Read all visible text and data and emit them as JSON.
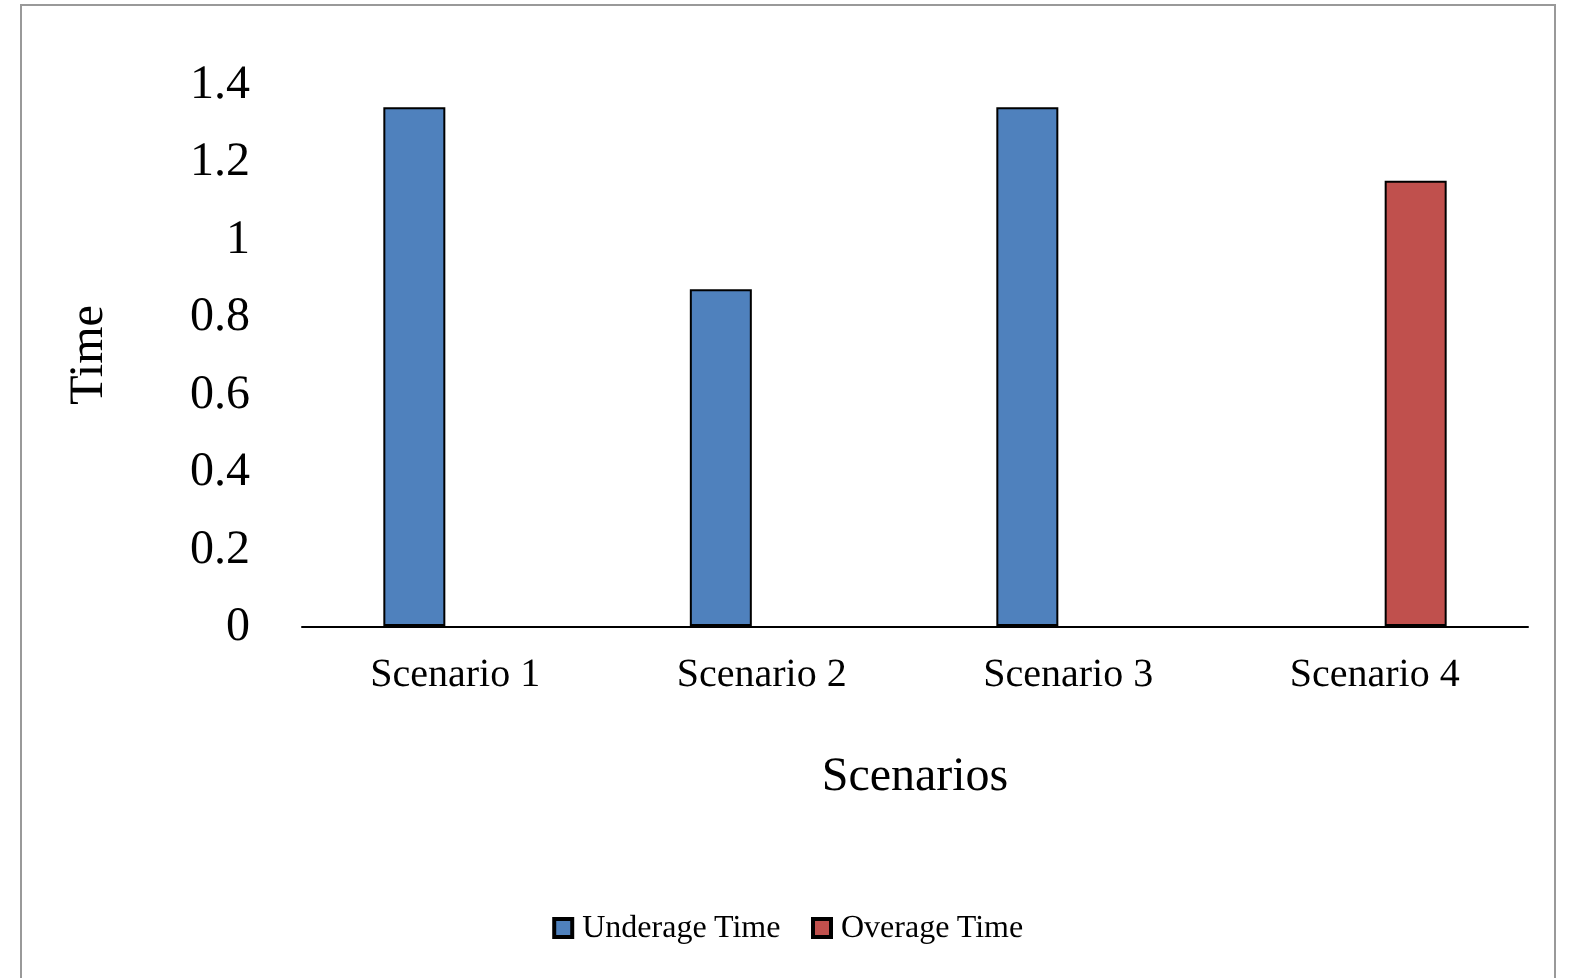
{
  "chart_data": {
    "type": "bar",
    "xlabel": "Scenarios",
    "ylabel": "Time",
    "categories": [
      "Scenario 1",
      "Scenario 2",
      "Scenario 3",
      "Scenario 4"
    ],
    "series": [
      {
        "name": "Underage Time",
        "color": "#4f81bd",
        "values": [
          1.34,
          0.87,
          1.34,
          null
        ]
      },
      {
        "name": "Overage Time",
        "color": "#c0504d",
        "values": [
          null,
          null,
          null,
          1.15
        ]
      }
    ],
    "ylim": [
      0,
      1.4
    ],
    "yticks": [
      0,
      0.2,
      0.4,
      0.6,
      0.8,
      1,
      1.2,
      1.4
    ],
    "grid": false,
    "legend": "bottom"
  }
}
